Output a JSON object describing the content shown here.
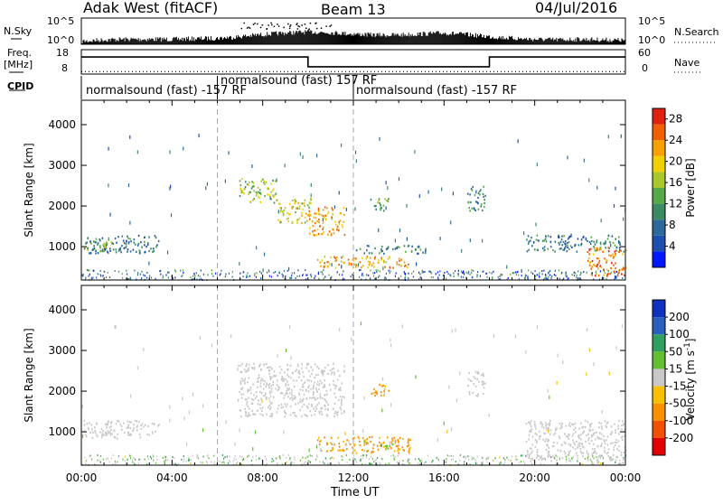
{
  "header": {
    "station": "Adak West (fitACF)",
    "beam": "Beam 13",
    "date": "04/Jul/2016"
  },
  "nsky": {
    "label": "N.Sky",
    "right_label": "N.Search",
    "tick_top": "10^5",
    "tick_bottom": "10^0"
  },
  "freq": {
    "label_line1": "Freq.",
    "label_line2": "[MHz]",
    "right_label": "Nave",
    "tick_top": "18",
    "tick_bottom": "8",
    "right_tick_top": "60",
    "right_tick_bottom": "0",
    "cpid_label": "CPID"
  },
  "cpid_segments": [
    {
      "start_hour": 0,
      "end_hour": 6,
      "label": "normalsound (fast) -157 RF"
    },
    {
      "start_hour": 6,
      "end_hour": 12,
      "label": "normalsound (fast) 157 RF"
    },
    {
      "start_hour": 12,
      "end_hour": 24,
      "label": "normalsound (fast) -157 RF"
    }
  ],
  "chart_data": [
    {
      "type": "line",
      "title": "N.Sky / N.Search",
      "x_unit_hours": [
        0,
        24
      ],
      "ylim_log10": [
        0,
        5
      ],
      "series": [
        {
          "name": "N.Sky",
          "x": [
            0,
            1,
            2,
            3,
            4,
            5,
            6,
            7,
            8,
            9,
            10,
            11,
            12,
            13,
            14,
            15,
            16,
            17,
            18,
            19,
            20,
            21,
            22,
            23,
            24
          ],
          "y_log10": [
            1.0,
            1.3,
            1.4,
            1.4,
            1.4,
            1.5,
            1.6,
            1.9,
            2.3,
            2.6,
            2.8,
            2.7,
            2.4,
            2.2,
            2.2,
            2.4,
            2.6,
            2.3,
            1.9,
            1.6,
            1.4,
            1.3,
            1.4,
            1.3,
            1.2
          ]
        }
      ]
    },
    {
      "type": "line",
      "title": "Freq. / Nave",
      "xlim_hours": [
        0,
        24
      ],
      "ylim": [
        8,
        18
      ],
      "right_ylim": [
        0,
        60
      ],
      "series": [
        {
          "name": "Freq.",
          "x": [
            0,
            10,
            10,
            18,
            18,
            24
          ],
          "y": [
            15,
            15,
            11,
            11,
            15,
            15
          ]
        },
        {
          "name": "Nave",
          "x": [
            0,
            24
          ],
          "y": [
            9,
            9
          ]
        }
      ]
    },
    {
      "type": "heatmap",
      "ylabel": "Slant Range [km]",
      "yticks": [
        1000,
        2000,
        3000,
        4000
      ],
      "ylim": [
        180,
        4600
      ],
      "xlim_hours": [
        0,
        24
      ],
      "colorbar": {
        "label": "Power [dB]",
        "ticks": [
          "4",
          "8",
          "12",
          "16",
          "20",
          "24",
          "28"
        ],
        "range": [
          0,
          30
        ],
        "colors": [
          "#0018ff",
          "#1e4fb0",
          "#2a6a9a",
          "#3a8a64",
          "#58a848",
          "#a8c82a",
          "#f0d000",
          "#f8a000",
          "#f06000",
          "#e02010"
        ]
      },
      "regions": [
        {
          "h0": 0.1,
          "h1": 3.4,
          "r0": 850,
          "r1": 1300,
          "level": 8
        },
        {
          "h0": 0.1,
          "h1": 1.5,
          "r0": 900,
          "r1": 1150,
          "level": 14
        },
        {
          "h0": 6.9,
          "h1": 8.6,
          "r0": 2100,
          "r1": 2700,
          "level": 16
        },
        {
          "h0": 8.6,
          "h1": 10.2,
          "r0": 1600,
          "r1": 2200,
          "level": 18
        },
        {
          "h0": 10.0,
          "h1": 11.6,
          "r0": 1300,
          "r1": 2000,
          "level": 22
        },
        {
          "h0": 10.4,
          "h1": 14.5,
          "r0": 500,
          "r1": 800,
          "level": 22
        },
        {
          "h0": 12.0,
          "h1": 15.2,
          "r0": 850,
          "r1": 1050,
          "level": 10
        },
        {
          "h0": 12.7,
          "h1": 13.6,
          "r0": 1900,
          "r1": 2200,
          "level": 12
        },
        {
          "h0": 17.0,
          "h1": 17.8,
          "r0": 1900,
          "r1": 2500,
          "level": 10
        },
        {
          "h0": 19.6,
          "h1": 24.0,
          "r0": 900,
          "r1": 1300,
          "level": 9
        },
        {
          "h0": 22.3,
          "h1": 24.0,
          "r0": 300,
          "r1": 1000,
          "level": 24
        }
      ]
    },
    {
      "type": "heatmap",
      "ylabel": "Slant Range [km]",
      "yticks": [
        1000,
        2000,
        3000,
        4000
      ],
      "ylim": [
        180,
        4600
      ],
      "xlim_hours": [
        0,
        24
      ],
      "xticks": [
        "00:00",
        "04:00",
        "08:00",
        "12:00",
        "16:00",
        "20:00",
        "00:00"
      ],
      "xlabel": "Time UT",
      "colorbar": {
        "label": "Velocity [m s^-1]",
        "ticks": [
          "200",
          "100",
          "50",
          "15",
          "-15",
          "-50",
          "-100",
          "-200"
        ],
        "colors": [
          "#1030c0",
          "#2860c0",
          "#30a060",
          "#60c030",
          "#c8c8c8",
          "#f8c000",
          "#f89000",
          "#f05000",
          "#e00000"
        ]
      },
      "regions": [
        {
          "h0": 0.1,
          "h1": 3.4,
          "r0": 850,
          "r1": 1300,
          "vel": 0
        },
        {
          "h0": 6.9,
          "h1": 11.6,
          "r0": 1400,
          "r1": 2700,
          "vel": 0
        },
        {
          "h0": 10.4,
          "h1": 14.5,
          "r0": 500,
          "r1": 900,
          "vel": -40
        },
        {
          "h0": 13.2,
          "h1": 13.8,
          "r0": 600,
          "r1": 750,
          "vel": 30
        },
        {
          "h0": 12.7,
          "h1": 13.6,
          "r0": 1900,
          "r1": 2200,
          "vel": -40
        },
        {
          "h0": 17.0,
          "h1": 17.8,
          "r0": 1900,
          "r1": 2500,
          "vel": 0
        },
        {
          "h0": 19.6,
          "h1": 24.0,
          "r0": 300,
          "r1": 1300,
          "vel": 0
        }
      ]
    }
  ]
}
